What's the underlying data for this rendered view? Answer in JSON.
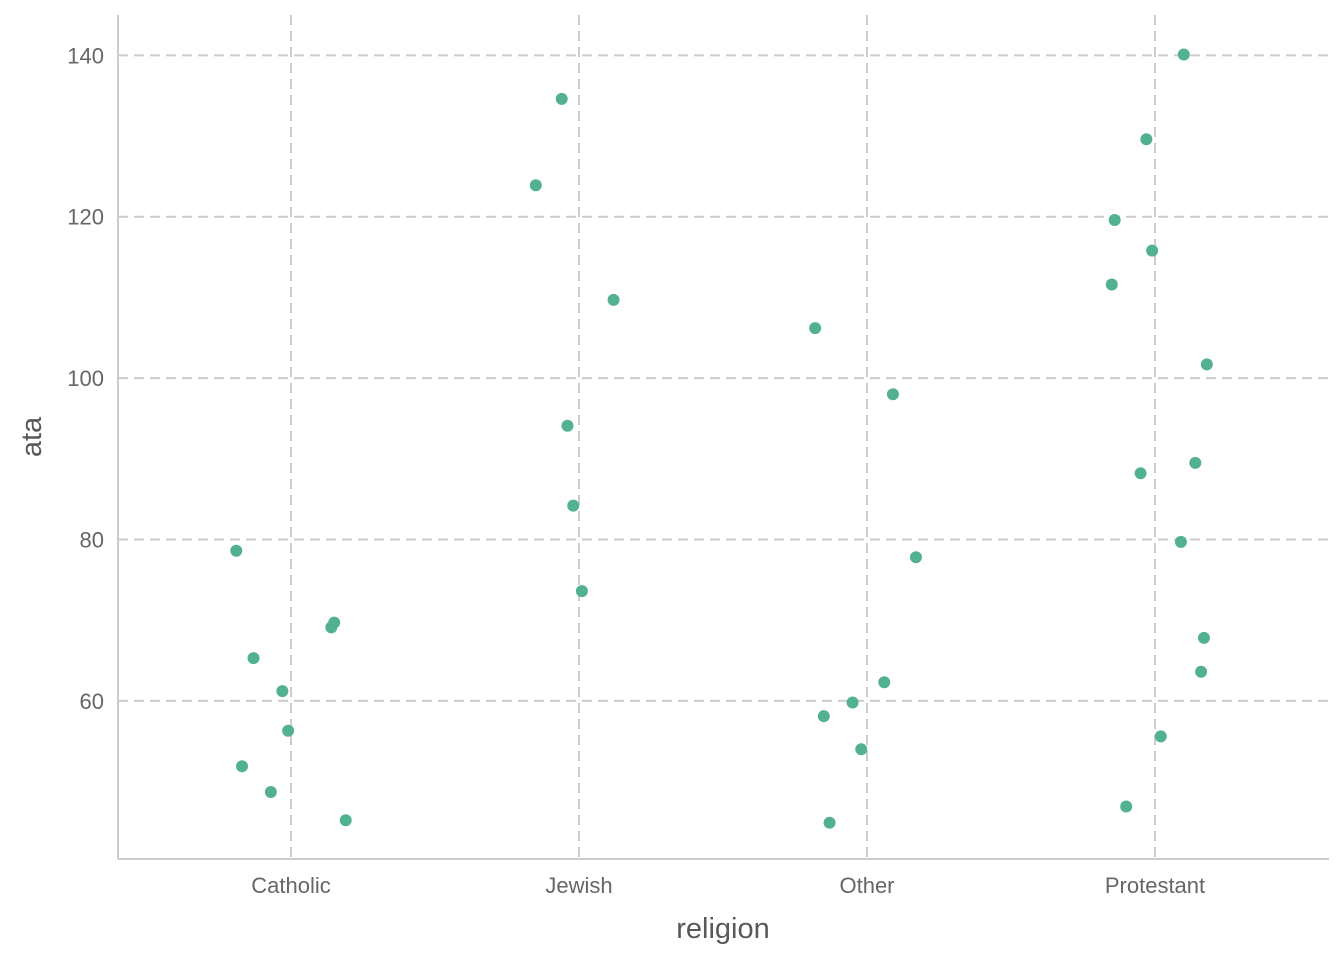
{
  "chart_data": {
    "type": "scatter",
    "title": "",
    "xlabel": "religion",
    "ylabel": "ata",
    "categories": [
      "Catholic",
      "Jewish",
      "Other",
      "Protestant"
    ],
    "ylim": [
      40.4,
      145
    ],
    "yticks": [
      60,
      80,
      100,
      120,
      140
    ],
    "y_tick_labels": [
      "60",
      "80",
      "100",
      "120",
      "140"
    ],
    "grid": true,
    "point_color": "#52b193",
    "points": [
      {
        "category": "Catholic",
        "jitter": -0.19,
        "y": 78.6
      },
      {
        "category": "Catholic",
        "jitter": -0.13,
        "y": 65.3
      },
      {
        "category": "Catholic",
        "jitter": -0.03,
        "y": 61.2
      },
      {
        "category": "Catholic",
        "jitter": -0.01,
        "y": 56.3
      },
      {
        "category": "Catholic",
        "jitter": -0.17,
        "y": 51.9
      },
      {
        "category": "Catholic",
        "jitter": -0.07,
        "y": 48.7
      },
      {
        "category": "Catholic",
        "jitter": 0.14,
        "y": 69.1
      },
      {
        "category": "Catholic",
        "jitter": 0.15,
        "y": 69.7
      },
      {
        "category": "Catholic",
        "jitter": 0.19,
        "y": 45.2
      },
      {
        "category": "Jewish",
        "jitter": -0.06,
        "y": 134.6
      },
      {
        "category": "Jewish",
        "jitter": -0.15,
        "y": 123.9
      },
      {
        "category": "Jewish",
        "jitter": 0.12,
        "y": 109.7
      },
      {
        "category": "Jewish",
        "jitter": -0.04,
        "y": 94.1
      },
      {
        "category": "Jewish",
        "jitter": -0.02,
        "y": 84.2
      },
      {
        "category": "Jewish",
        "jitter": 0.01,
        "y": 73.6
      },
      {
        "category": "Other",
        "jitter": -0.18,
        "y": 106.2
      },
      {
        "category": "Other",
        "jitter": 0.09,
        "y": 98.0
      },
      {
        "category": "Other",
        "jitter": 0.17,
        "y": 77.8
      },
      {
        "category": "Other",
        "jitter": 0.06,
        "y": 62.3
      },
      {
        "category": "Other",
        "jitter": -0.05,
        "y": 59.8
      },
      {
        "category": "Other",
        "jitter": -0.15,
        "y": 58.1
      },
      {
        "category": "Other",
        "jitter": -0.02,
        "y": 54.0
      },
      {
        "category": "Other",
        "jitter": -0.13,
        "y": 44.9
      },
      {
        "category": "Protestant",
        "jitter": 0.1,
        "y": 140.1
      },
      {
        "category": "Protestant",
        "jitter": -0.03,
        "y": 129.6
      },
      {
        "category": "Protestant",
        "jitter": -0.14,
        "y": 119.6
      },
      {
        "category": "Protestant",
        "jitter": -0.01,
        "y": 115.8
      },
      {
        "category": "Protestant",
        "jitter": -0.15,
        "y": 111.6
      },
      {
        "category": "Protestant",
        "jitter": 0.18,
        "y": 101.7
      },
      {
        "category": "Protestant",
        "jitter": 0.14,
        "y": 89.5
      },
      {
        "category": "Protestant",
        "jitter": -0.05,
        "y": 88.2
      },
      {
        "category": "Protestant",
        "jitter": 0.09,
        "y": 79.7
      },
      {
        "category": "Protestant",
        "jitter": 0.17,
        "y": 67.8
      },
      {
        "category": "Protestant",
        "jitter": 0.16,
        "y": 63.6
      },
      {
        "category": "Protestant",
        "jitter": 0.02,
        "y": 55.6
      },
      {
        "category": "Protestant",
        "jitter": -0.1,
        "y": 46.9
      }
    ]
  }
}
